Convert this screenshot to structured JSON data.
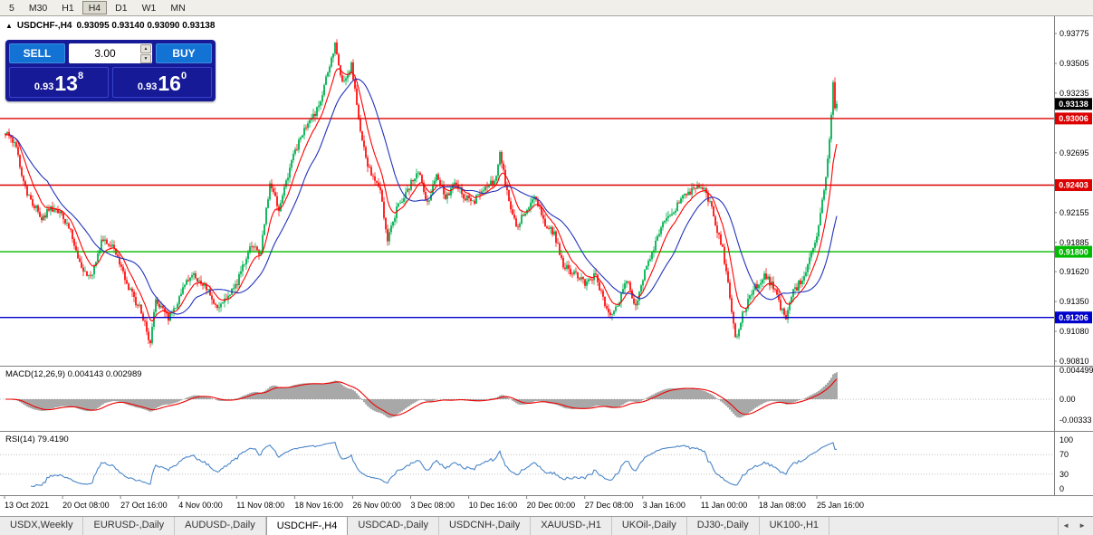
{
  "toolbar": {
    "timeframes": [
      "5",
      "M30",
      "H1",
      "H4",
      "D1",
      "W1",
      "MN"
    ],
    "active_timeframe": "H4"
  },
  "chart_header": {
    "collapse_icon": "▲",
    "symbol": "USDCHF-,H4",
    "ohlc": "0.93095 0.93140 0.93090 0.93138"
  },
  "trade_panel": {
    "sell_label": "SELL",
    "buy_label": "BUY",
    "volume": "3.00",
    "sell_price": {
      "prefix": "0.93",
      "big": "13",
      "sup": "8"
    },
    "buy_price": {
      "prefix": "0.93",
      "big": "16",
      "sup": "0"
    }
  },
  "price_axis": {
    "ticks": [
      "0.93775",
      "0.93505",
      "0.93235",
      "0.92695",
      "0.92155",
      "0.91885",
      "0.91620",
      "0.91350",
      "0.91080",
      "0.90810"
    ],
    "markers": [
      {
        "label": "0.93138",
        "value": 0.93138,
        "type": "current-price",
        "color": "#000000"
      },
      {
        "label": "0.93006",
        "value": 0.93006,
        "type": "hline",
        "color": "#dd0000"
      },
      {
        "label": "0.92403",
        "value": 0.92403,
        "type": "hline",
        "color": "#dd0000"
      },
      {
        "label": "0.91800",
        "value": 0.918,
        "type": "hline",
        "color": "#00bb00"
      },
      {
        "label": "0.91206",
        "value": 0.91206,
        "type": "hline",
        "color": "#0000cc"
      }
    ]
  },
  "macd": {
    "label": "MACD(12,26,9) 0.004143 0.002989",
    "axis_labels": [
      "0.004499",
      "0.00",
      "-0.00333"
    ],
    "fast": 12,
    "slow": 26,
    "signal": 9
  },
  "rsi": {
    "label": "RSI(14) 79.4190",
    "axis_labels": [
      "100",
      "70",
      "30",
      "0"
    ],
    "levels": [
      70,
      30
    ],
    "period": 14
  },
  "time_axis": [
    "13 Oct 2021",
    "20 Oct 08:00",
    "27 Oct 16:00",
    "4 Nov 00:00",
    "11 Nov 08:00",
    "18 Nov 16:00",
    "26 Nov 00:00",
    "3 Dec 08:00",
    "10 Dec 16:00",
    "20 Dec 00:00",
    "27 Dec 08:00",
    "3 Jan 16:00",
    "11 Jan 00:00",
    "18 Jan 08:00",
    "25 Jan 16:00"
  ],
  "tabs": {
    "items": [
      "USDX,Weekly",
      "EURUSD-,Daily",
      "AUDUSD-,Daily",
      "USDCHF-,H4",
      "USDCAD-,Daily",
      "USDCNH-,Daily",
      "XAUUSD-,H1",
      "UKOil-,Daily",
      "DJ30-,Daily",
      "UK100-,H1"
    ],
    "active": "USDCHF-,H4",
    "scroll_left_icon": "◄",
    "scroll_right_icon": "►"
  },
  "colors": {
    "bull": "#00b050",
    "bear": "#ff1111",
    "ma_fast": "#ff0000",
    "ma_slow": "#2233bb",
    "macd_hist": "#9e9e9e",
    "macd_signal": "#ee0000",
    "rsi_line": "#4a86c8",
    "axis_line": "#808080"
  },
  "chart_data": {
    "type": "candlestick",
    "symbol": "USDCHF",
    "timeframe": "H4",
    "bars": 460,
    "last_price": 0.93138,
    "visible_price_range": [
      0.9081,
      0.9394
    ],
    "hlines": [
      0.93006,
      0.92403,
      0.918,
      0.91206
    ],
    "noise_seed": 12,
    "ma_fast_period": 10,
    "ma_slow_period": 24,
    "close_path_anchors": [
      [
        0,
        0.9287
      ],
      [
        5,
        0.9278
      ],
      [
        12,
        0.9232
      ],
      [
        20,
        0.9212
      ],
      [
        27,
        0.922
      ],
      [
        35,
        0.9203
      ],
      [
        42,
        0.9166
      ],
      [
        47,
        0.9157
      ],
      [
        53,
        0.919
      ],
      [
        60,
        0.9184
      ],
      [
        67,
        0.915
      ],
      [
        75,
        0.9126
      ],
      [
        80,
        0.9098
      ],
      [
        83,
        0.9136
      ],
      [
        90,
        0.9118
      ],
      [
        97,
        0.9143
      ],
      [
        103,
        0.9161
      ],
      [
        111,
        0.9146
      ],
      [
        117,
        0.9128
      ],
      [
        123,
        0.9141
      ],
      [
        128,
        0.9153
      ],
      [
        135,
        0.9186
      ],
      [
        141,
        0.918
      ],
      [
        146,
        0.9241
      ],
      [
        151,
        0.9218
      ],
      [
        158,
        0.9263
      ],
      [
        165,
        0.9292
      ],
      [
        171,
        0.9303
      ],
      [
        178,
        0.9341
      ],
      [
        182,
        0.9369
      ],
      [
        186,
        0.9333
      ],
      [
        191,
        0.9349
      ],
      [
        195,
        0.9301
      ],
      [
        199,
        0.9263
      ],
      [
        203,
        0.9246
      ],
      [
        207,
        0.9233
      ],
      [
        211,
        0.9192
      ],
      [
        217,
        0.9223
      ],
      [
        223,
        0.9239
      ],
      [
        228,
        0.9253
      ],
      [
        233,
        0.9223
      ],
      [
        238,
        0.9249
      ],
      [
        243,
        0.9229
      ],
      [
        248,
        0.9241
      ],
      [
        253,
        0.9231
      ],
      [
        258,
        0.9223
      ],
      [
        263,
        0.9236
      ],
      [
        270,
        0.9243
      ],
      [
        273,
        0.9269
      ],
      [
        277,
        0.9233
      ],
      [
        282,
        0.9201
      ],
      [
        287,
        0.9216
      ],
      [
        293,
        0.9229
      ],
      [
        298,
        0.9206
      ],
      [
        303,
        0.9196
      ],
      [
        308,
        0.9169
      ],
      [
        313,
        0.9161
      ],
      [
        320,
        0.9151
      ],
      [
        326,
        0.9159
      ],
      [
        331,
        0.9131
      ],
      [
        336,
        0.9123
      ],
      [
        341,
        0.9146
      ],
      [
        344,
        0.9153
      ],
      [
        348,
        0.9129
      ],
      [
        352,
        0.9156
      ],
      [
        357,
        0.9179
      ],
      [
        362,
        0.9201
      ],
      [
        368,
        0.9216
      ],
      [
        374,
        0.9229
      ],
      [
        381,
        0.9239
      ],
      [
        386,
        0.9236
      ],
      [
        391,
        0.9213
      ],
      [
        396,
        0.9181
      ],
      [
        400,
        0.9141
      ],
      [
        403,
        0.9101
      ],
      [
        407,
        0.9123
      ],
      [
        413,
        0.9146
      ],
      [
        419,
        0.9159
      ],
      [
        424,
        0.9149
      ],
      [
        428,
        0.9129
      ],
      [
        431,
        0.9119
      ],
      [
        435,
        0.9143
      ],
      [
        440,
        0.9156
      ],
      [
        444,
        0.9173
      ],
      [
        448,
        0.9191
      ],
      [
        451,
        0.9226
      ],
      [
        454,
        0.9263
      ],
      [
        456,
        0.9301
      ],
      [
        457,
        0.9336
      ],
      [
        458,
        0.9311
      ],
      [
        459,
        0.93138
      ]
    ]
  }
}
